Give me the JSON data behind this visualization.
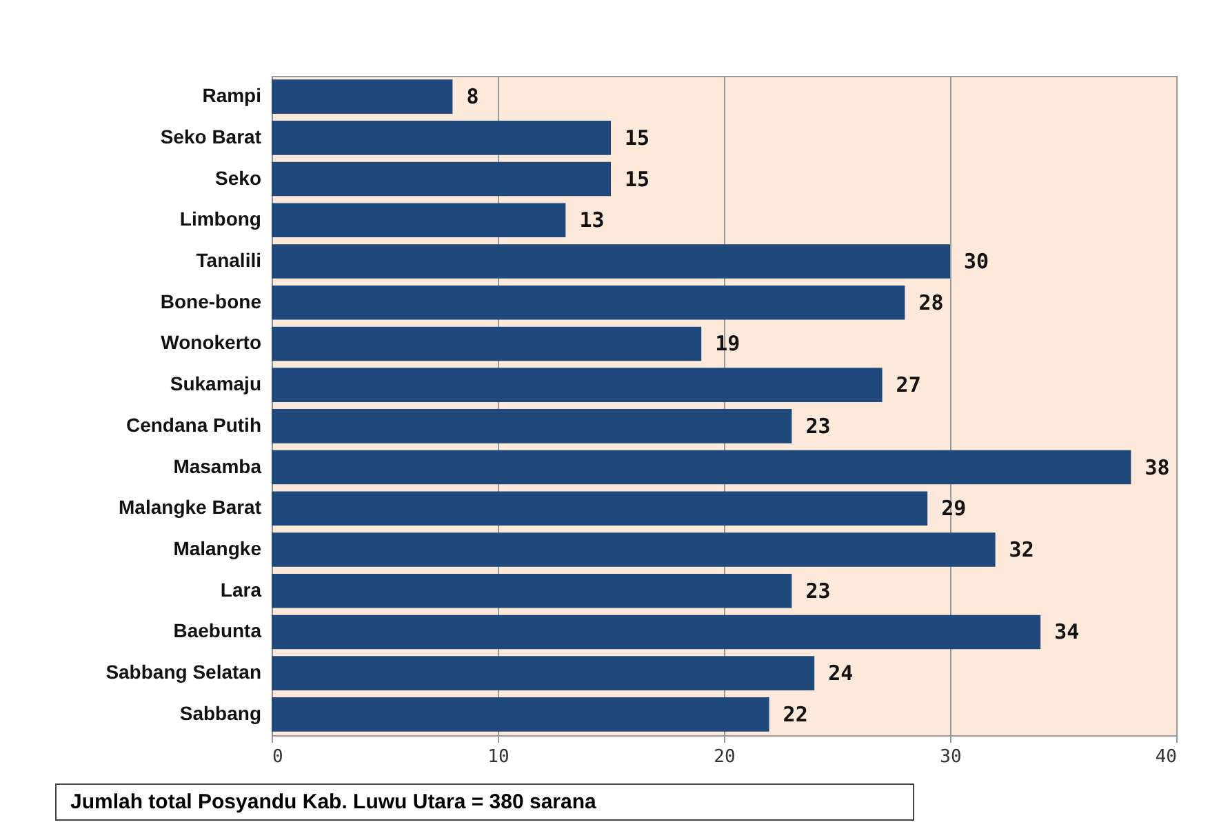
{
  "chart_data": {
    "type": "bar",
    "orientation": "horizontal",
    "categories": [
      "Rampi",
      "Seko Barat",
      "Seko",
      "Limbong",
      "Tanalili",
      "Bone-bone",
      "Wonokerto",
      "Sukamaju",
      "Cendana Putih",
      "Masamba",
      "Malangke Barat",
      "Malangke",
      "Lara",
      "Baebunta",
      "Sabbang Selatan",
      "Sabbang"
    ],
    "values": [
      8,
      15,
      15,
      13,
      30,
      28,
      19,
      27,
      23,
      38,
      29,
      32,
      23,
      34,
      24,
      22
    ],
    "color": "#1f497d",
    "xlim": [
      0,
      40
    ],
    "xticks": [
      0,
      10,
      20,
      30,
      40
    ],
    "grid": "x",
    "data_labels": true,
    "annotations": [
      "Jumlah total Posyandu Kab. Luwu Utara = 380 sarana"
    ]
  }
}
